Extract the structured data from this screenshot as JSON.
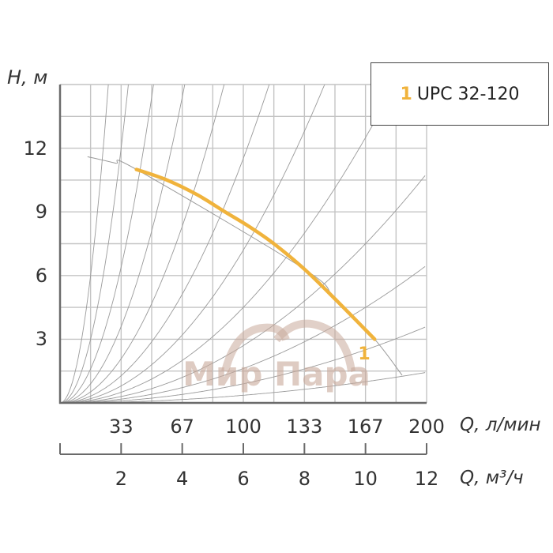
{
  "chart_data": {
    "type": "line",
    "title": "",
    "ylabel": "H, м",
    "xlabel": "Q, л/мин",
    "xlabel_secondary": "Q, м³/ч",
    "ylim": [
      0,
      15
    ],
    "xlim_m3h": [
      0,
      12
    ],
    "y_ticks": [
      3,
      6,
      9,
      12
    ],
    "x_ticks_lmin": [
      "33",
      "67",
      "100",
      "133",
      "167",
      "200"
    ],
    "x_ticks_m3h": [
      "2",
      "4",
      "6",
      "8",
      "10",
      "12"
    ],
    "grid": true,
    "legend": [
      {
        "number": "1",
        "label": "UPC 32-120"
      }
    ],
    "series": [
      {
        "name": "1 UPC 32-120",
        "color": "#f0b33c",
        "x_m3h": [
          2.5,
          3.5,
          4.5,
          5.4,
          6.2,
          7.0,
          8.0,
          9.0,
          10.3
        ],
        "y_m": [
          11.0,
          10.5,
          9.8,
          9.0,
          8.3,
          7.5,
          6.3,
          4.9,
          3.0
        ]
      },
      {
        "name": "characteristic-extension",
        "color": "#999999",
        "x_m3h": [
          0.9,
          1.8,
          2.5,
          8.0,
          9.0,
          10.3,
          11.2
        ],
        "y_m": [
          11.6,
          11.3,
          11.0,
          6.3,
          4.9,
          3.0,
          1.3
        ]
      }
    ],
    "system_curves_k": [
      60,
      30,
      16,
      9,
      5.2,
      3.2,
      2.0,
      1.25,
      0.75,
      0.45,
      0.25,
      0.1
    ]
  },
  "labels": {
    "y_axis": "H, м",
    "x_axis_lmin": "Q, л/мин",
    "x_axis_m3h": "Q, м³/ч",
    "curve_marker": "1",
    "legend_num": "1",
    "legend_text": "UPC 32-120",
    "watermark": "Мир Пара"
  }
}
